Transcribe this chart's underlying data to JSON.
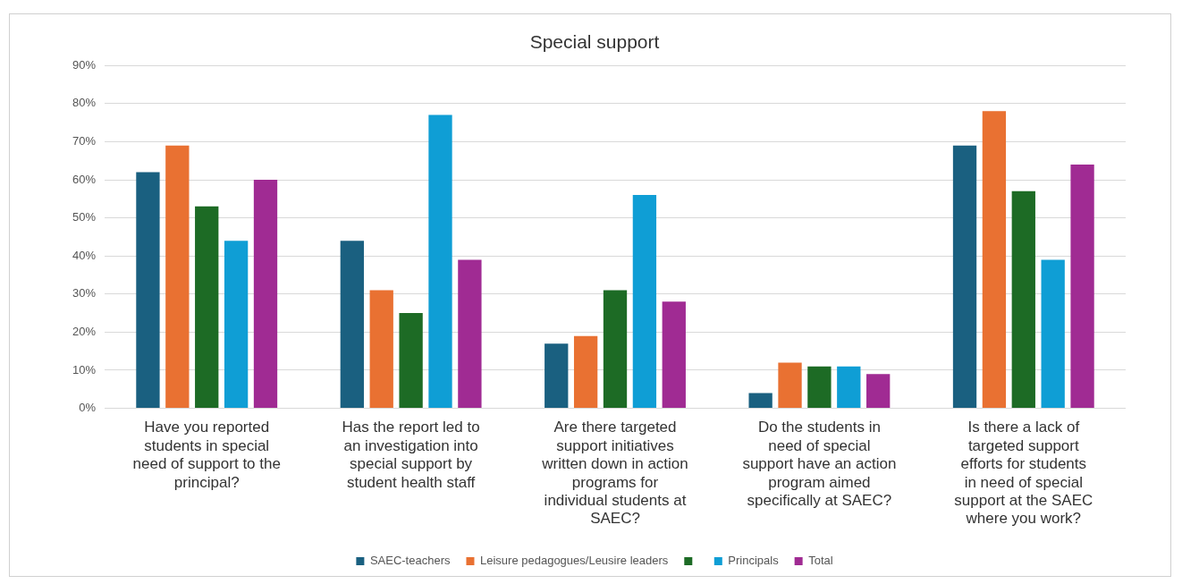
{
  "chart_data": {
    "type": "bar",
    "title": "Special support",
    "categories": [
      "Have you reported students in special need of support to the principal?",
      "Has the report led to an investigation into special support by student health staff",
      "Are there targeted support initiatives written down in action programs for individual students at SAEC?",
      "Do the students in need of special support have an action program aimed specifically at SAEC?",
      "Is there a lack of targeted support efforts for students in need of special support at the SAEC where you work?"
    ],
    "series": [
      {
        "name": "SAEC-teachers",
        "color": "#1a6080",
        "values": [
          62,
          44,
          17,
          4,
          69
        ]
      },
      {
        "name": "Leisure pedagogues/Leusire leaders",
        "color": "#e97132",
        "values": [
          69,
          31,
          19,
          12,
          78
        ]
      },
      {
        "color": "#1d6b25",
        "values": [
          53,
          25,
          31,
          11,
          57
        ]
      },
      {
        "name": "Principals",
        "color": "#0f9ed5",
        "values": [
          44,
          77,
          56,
          11,
          39
        ]
      },
      {
        "name": "Total",
        "color": "#a02b93",
        "values": [
          60,
          39,
          28,
          9,
          64
        ]
      }
    ],
    "ylim": [
      0,
      90
    ],
    "yticks": [
      {
        "value": 0,
        "label": "0%"
      },
      {
        "value": 10,
        "label": "10%"
      },
      {
        "value": 20,
        "label": "20%"
      },
      {
        "value": 30,
        "label": "30%"
      },
      {
        "value": 40,
        "label": "40%"
      },
      {
        "value": 50,
        "label": "50%"
      },
      {
        "value": 60,
        "label": "60%"
      },
      {
        "value": 70,
        "label": "70%"
      },
      {
        "value": 80,
        "label": "80%"
      },
      {
        "value": 90,
        "label": "90%"
      }
    ],
    "grid": "y",
    "legend": "bottom"
  }
}
